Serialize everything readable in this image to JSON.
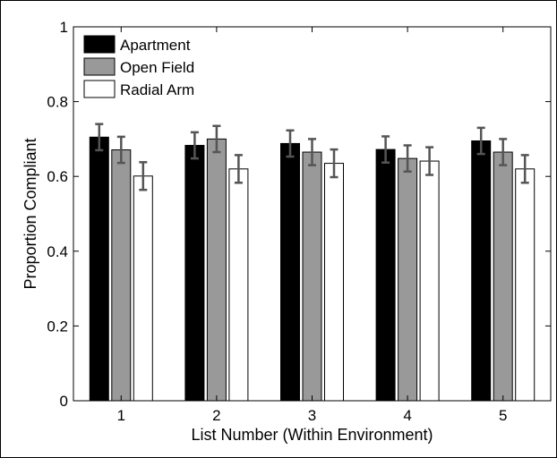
{
  "chart_data": {
    "type": "bar",
    "xlabel": "List Number (Within Environment)",
    "ylabel": "Proportion Compliant",
    "categories": [
      "1",
      "2",
      "3",
      "4",
      "5"
    ],
    "ylim": [
      0,
      1
    ],
    "yticks": [
      "0",
      "0.2",
      "0.4",
      "0.6",
      "0.8",
      "1"
    ],
    "legend_position": "top-left",
    "grid": false,
    "series": [
      {
        "name": "Apartment",
        "color": "#000000",
        "values": [
          0.705,
          0.683,
          0.688,
          0.672,
          0.695
        ],
        "errors": [
          0.035,
          0.035,
          0.035,
          0.035,
          0.035
        ]
      },
      {
        "name": "Open Field",
        "color": "#999999",
        "values": [
          0.671,
          0.7,
          0.665,
          0.648,
          0.665
        ],
        "errors": [
          0.035,
          0.035,
          0.035,
          0.035,
          0.035
        ]
      },
      {
        "name": "Radial Arm",
        "color": "#ffffff",
        "values": [
          0.601,
          0.62,
          0.635,
          0.641,
          0.62
        ],
        "errors": [
          0.037,
          0.037,
          0.037,
          0.037,
          0.037
        ]
      }
    ]
  }
}
